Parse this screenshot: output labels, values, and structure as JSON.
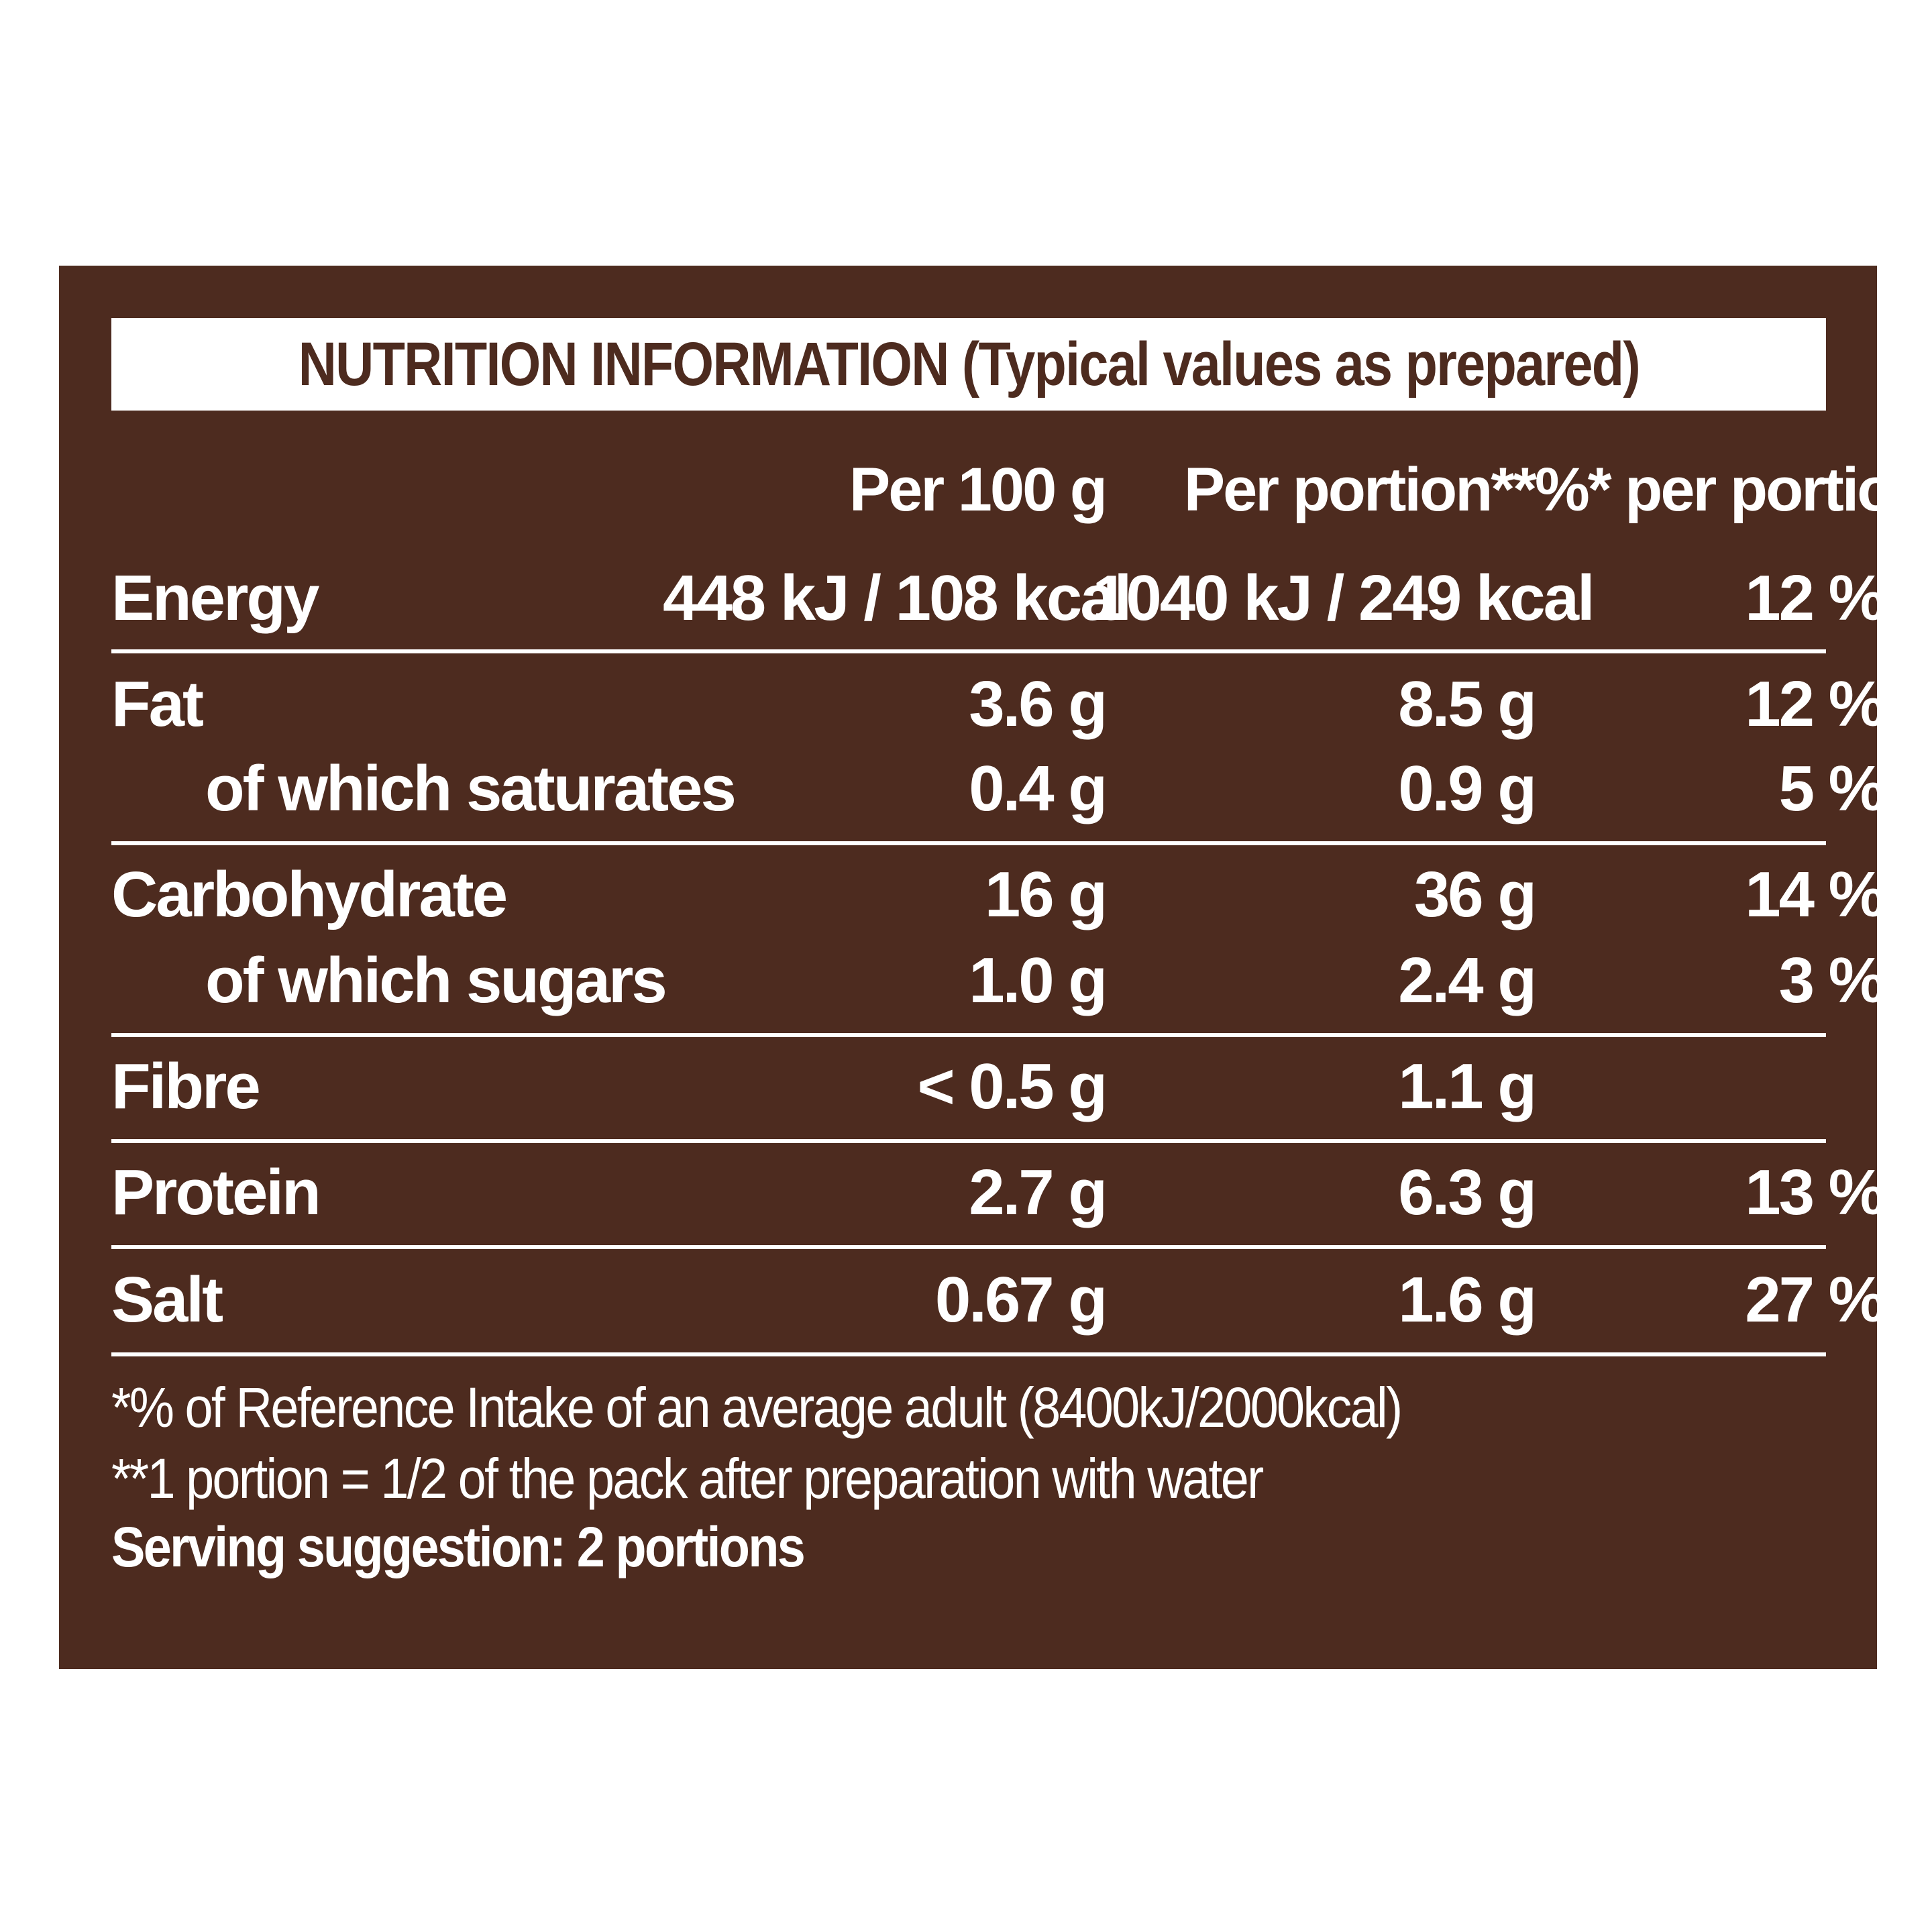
{
  "title": "NUTRITION INFORMATION (Typical values as prepared)",
  "columns": [
    "Per 100 g",
    "Per portion**",
    "%* per portion**"
  ],
  "rows": [
    {
      "label": "Energy",
      "per100": "448 kJ / 108 kcal",
      "perPortion": "1040 kJ / 249 kcal",
      "ri": "12 %"
    },
    {
      "label": "Fat",
      "per100": "3.6 g",
      "perPortion": "8.5 g",
      "ri": "12 %"
    },
    {
      "label": "of which saturates",
      "per100": "0.4 g",
      "perPortion": "0.9 g",
      "ri": "5 %"
    },
    {
      "label": "Carbohydrate",
      "per100": "16 g",
      "perPortion": "36 g",
      "ri": "14 %"
    },
    {
      "label": "of which sugars",
      "per100": "1.0 g",
      "perPortion": "2.4 g",
      "ri": "3 %"
    },
    {
      "label": "Fibre",
      "per100": "< 0.5 g",
      "perPortion": "1.1 g",
      "ri": ""
    },
    {
      "label": "Protein",
      "per100": "2.7 g",
      "perPortion": "6.3 g",
      "ri": "13 %"
    },
    {
      "label": "Salt",
      "per100": "0.67 g",
      "perPortion": "1.6 g",
      "ri": "27 %"
    }
  ],
  "footnotes": {
    "reference_intake": "*% of Reference Intake of an average adult (8400kJ/2000kcal)",
    "portion": "**1 portion = 1/2 of the pack after preparation with water",
    "serving": "Serving suggestion: 2 portions"
  },
  "colors": {
    "panel": "#4d2b1f",
    "text": "#ffffff"
  }
}
